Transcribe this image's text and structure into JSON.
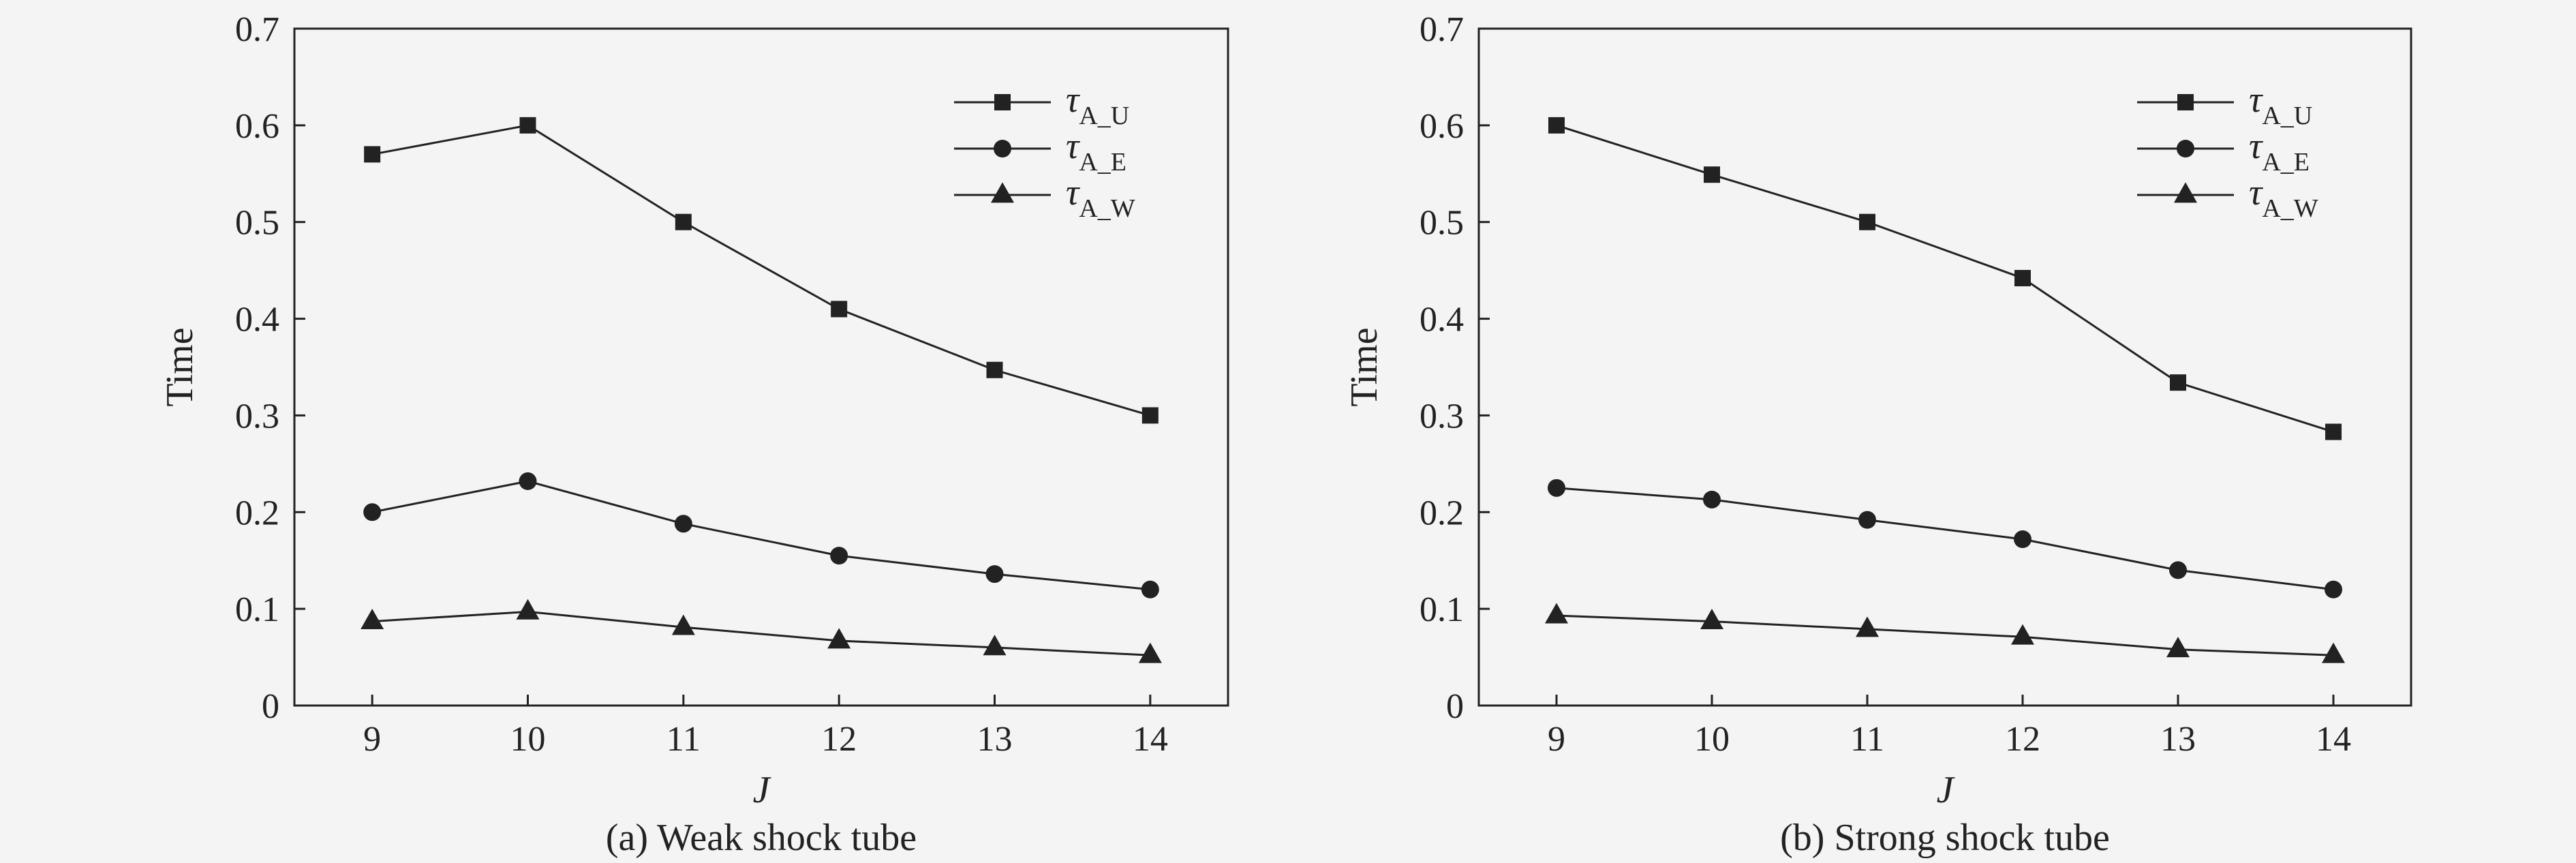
{
  "chart_data": [
    {
      "type": "line",
      "title": "",
      "caption": "(a) Weak shock tube",
      "xlabel": "J",
      "ylabel": "Time",
      "x": [
        9,
        10,
        11,
        12,
        13,
        14
      ],
      "xlim": [
        8.5,
        14.5
      ],
      "ylim": [
        0,
        0.7
      ],
      "xticks": [
        "9",
        "10",
        "11",
        "12",
        "13",
        "14"
      ],
      "yticks": [
        "0",
        "0.1",
        "0.2",
        "0.3",
        "0.4",
        "0.5",
        "0.6",
        "0.7"
      ],
      "legend_position": "top-right",
      "grid": false,
      "series": [
        {
          "name": "A_U",
          "marker": "square",
          "values": [
            0.57,
            0.6,
            0.5,
            0.41,
            0.347,
            0.3
          ]
        },
        {
          "name": "A_E",
          "marker": "circle",
          "values": [
            0.2,
            0.232,
            0.188,
            0.155,
            0.136,
            0.12
          ]
        },
        {
          "name": "A_W",
          "marker": "triangle",
          "values": [
            0.087,
            0.097,
            0.081,
            0.067,
            0.06,
            0.052
          ]
        }
      ]
    },
    {
      "type": "line",
      "title": "",
      "caption": "(b)  Strong shock tube",
      "xlabel": "J",
      "ylabel": "Time",
      "x": [
        9,
        10,
        11,
        12,
        13,
        14
      ],
      "xlim": [
        8.5,
        14.5
      ],
      "ylim": [
        0,
        0.7
      ],
      "xticks": [
        "9",
        "10",
        "11",
        "12",
        "13",
        "14"
      ],
      "yticks": [
        "0",
        "0.1",
        "0.2",
        "0.3",
        "0.4",
        "0.5",
        "0.6",
        "0.7"
      ],
      "legend_position": "top-right",
      "grid": false,
      "series": [
        {
          "name": "A_U",
          "marker": "square",
          "values": [
            0.6,
            0.549,
            0.5,
            0.442,
            0.334,
            0.283
          ]
        },
        {
          "name": "A_E",
          "marker": "circle",
          "values": [
            0.225,
            0.213,
            0.192,
            0.172,
            0.14,
            0.12
          ]
        },
        {
          "name": "A_W",
          "marker": "triangle",
          "values": [
            0.093,
            0.087,
            0.079,
            0.071,
            0.058,
            0.052
          ]
        }
      ]
    }
  ],
  "legend_symbol": "τ",
  "colors": {
    "ink": "#222222",
    "background": "#f4f4f4"
  }
}
